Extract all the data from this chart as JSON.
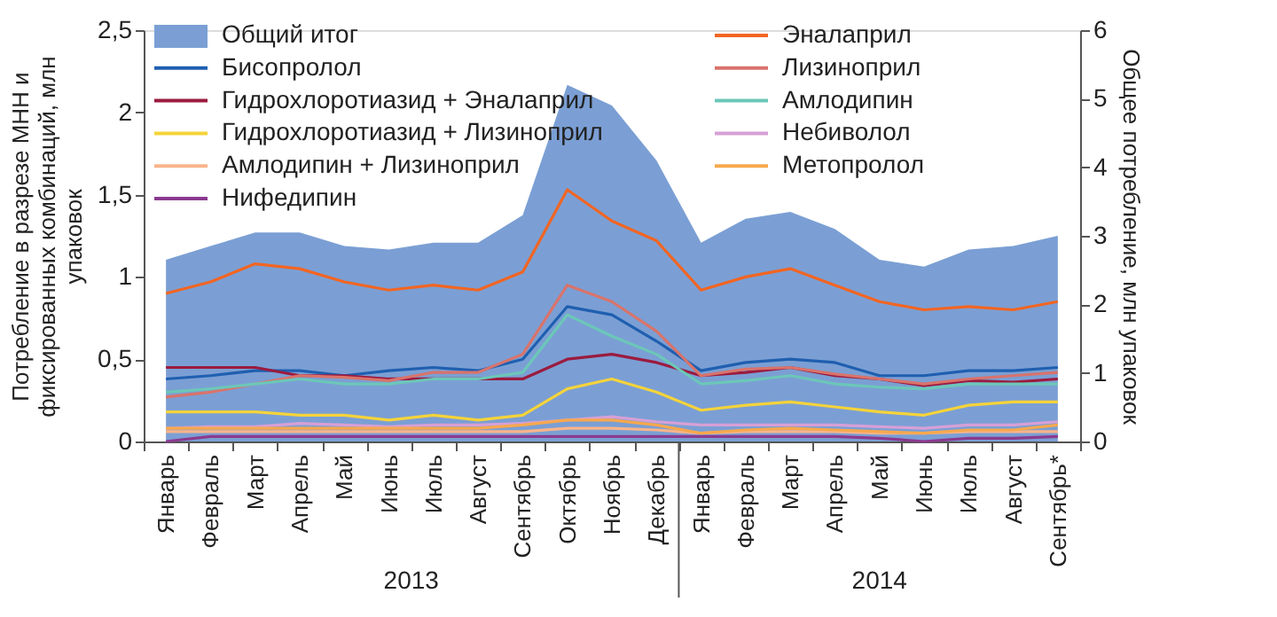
{
  "chart_data": {
    "type": "line",
    "ylabel": "Потребление в разрезе МНН и фиксированных комбинаций, млн упаковок",
    "y2label": "Общее потребление, млн упаковок",
    "categories": [
      "Январь",
      "Февраль",
      "Март",
      "Апрель",
      "Май",
      "Июнь",
      "Июль",
      "Август",
      "Сентябрь",
      "Октябрь",
      "Ноябрь",
      "Декабрь",
      "Январь",
      "Февраль",
      "Март",
      "Апрель",
      "Май",
      "Июнь",
      "Июль",
      "Август",
      "Сентябрь*"
    ],
    "annotations": [
      "2013",
      "2014"
    ],
    "ylim": [
      0,
      2.5
    ],
    "yticks": [
      0,
      {
        "value": 0.5,
        "label": "0,5"
      },
      1,
      {
        "value": 1.5,
        "label": "1,5"
      },
      2,
      {
        "value": 2.5,
        "label": "2,5"
      }
    ],
    "y2lim": [
      0,
      6
    ],
    "y2ticks": [
      0,
      1,
      2,
      3,
      4,
      5,
      6
    ],
    "grid": false,
    "legend": "top",
    "marker": "none",
    "line_style": "solid",
    "series": [
      {
        "name": "Общий итог",
        "type": "area",
        "axis": "y2",
        "color": "#7b9fd4",
        "values": [
          2.65,
          2.85,
          3.05,
          3.05,
          2.85,
          2.8,
          2.9,
          2.9,
          3.3,
          5.2,
          4.9,
          4.1,
          2.9,
          3.25,
          3.35,
          3.1,
          2.65,
          2.55,
          2.8,
          2.85,
          3.0
        ]
      },
      {
        "name": "Бисопролол",
        "color": "#1f5fb0",
        "values": [
          0.38,
          0.4,
          0.43,
          0.43,
          0.4,
          0.43,
          0.45,
          0.43,
          0.5,
          0.82,
          0.77,
          0.61,
          0.43,
          0.48,
          0.5,
          0.48,
          0.4,
          0.4,
          0.43,
          0.43,
          0.45
        ]
      },
      {
        "name": "Гидрохлоротиазид + Эналаприл",
        "color": "#9b1b3f",
        "values": [
          0.45,
          0.45,
          0.45,
          0.4,
          0.4,
          0.38,
          0.38,
          0.38,
          0.38,
          0.5,
          0.53,
          0.48,
          0.4,
          0.42,
          0.45,
          0.4,
          0.38,
          0.34,
          0.37,
          0.36,
          0.38
        ]
      },
      {
        "name": "Гидрохлоротиазид + Лизиноприл",
        "color": "#f5d33a",
        "values": [
          0.18,
          0.18,
          0.18,
          0.16,
          0.16,
          0.13,
          0.16,
          0.13,
          0.16,
          0.32,
          0.38,
          0.3,
          0.19,
          0.22,
          0.24,
          0.21,
          0.18,
          0.16,
          0.22,
          0.24,
          0.24
        ]
      },
      {
        "name": "Амлодипин + Лизиноприл",
        "color": "#f9b48a",
        "values": [
          0.06,
          0.06,
          0.06,
          0.06,
          0.06,
          0.06,
          0.06,
          0.06,
          0.06,
          0.08,
          0.08,
          0.07,
          0.05,
          0.06,
          0.06,
          0.06,
          0.05,
          0.05,
          0.06,
          0.06,
          0.06
        ]
      },
      {
        "name": "Нифедипин",
        "color": "#8b3a8f",
        "values": [
          0.0,
          0.03,
          0.03,
          0.03,
          0.03,
          0.03,
          0.03,
          0.03,
          0.03,
          0.03,
          0.03,
          0.03,
          0.03,
          0.03,
          0.03,
          0.03,
          0.02,
          0.0,
          0.02,
          0.02,
          0.03
        ]
      },
      {
        "name": "Эналаприл",
        "color": "#f26522",
        "values": [
          0.9,
          0.97,
          1.08,
          1.05,
          0.97,
          0.92,
          0.95,
          0.92,
          1.03,
          1.53,
          1.34,
          1.22,
          0.92,
          1.0,
          1.05,
          0.95,
          0.85,
          0.8,
          0.82,
          0.8,
          0.85
        ]
      },
      {
        "name": "Лизиноприл",
        "color": "#d9736b",
        "values": [
          0.27,
          0.3,
          0.35,
          0.4,
          0.39,
          0.37,
          0.42,
          0.42,
          0.53,
          0.95,
          0.85,
          0.67,
          0.4,
          0.44,
          0.45,
          0.41,
          0.38,
          0.35,
          0.38,
          0.4,
          0.42
        ]
      },
      {
        "name": "Амлодипин",
        "color": "#6cc7b8",
        "values": [
          0.3,
          0.32,
          0.35,
          0.38,
          0.35,
          0.35,
          0.38,
          0.38,
          0.42,
          0.77,
          0.64,
          0.53,
          0.35,
          0.37,
          0.4,
          0.35,
          0.33,
          0.32,
          0.35,
          0.35,
          0.35
        ]
      },
      {
        "name": "Небиволол",
        "color": "#d7a0d6",
        "values": [
          0.08,
          0.09,
          0.09,
          0.11,
          0.1,
          0.09,
          0.1,
          0.1,
          0.11,
          0.13,
          0.15,
          0.12,
          0.1,
          0.1,
          0.1,
          0.1,
          0.09,
          0.08,
          0.1,
          0.1,
          0.12
        ]
      },
      {
        "name": "Метопролол",
        "color": "#f7a84d",
        "values": [
          0.08,
          0.08,
          0.08,
          0.08,
          0.08,
          0.08,
          0.08,
          0.08,
          0.1,
          0.13,
          0.13,
          0.1,
          0.05,
          0.07,
          0.08,
          0.07,
          0.06,
          0.05,
          0.07,
          0.07,
          0.1
        ]
      }
    ]
  }
}
